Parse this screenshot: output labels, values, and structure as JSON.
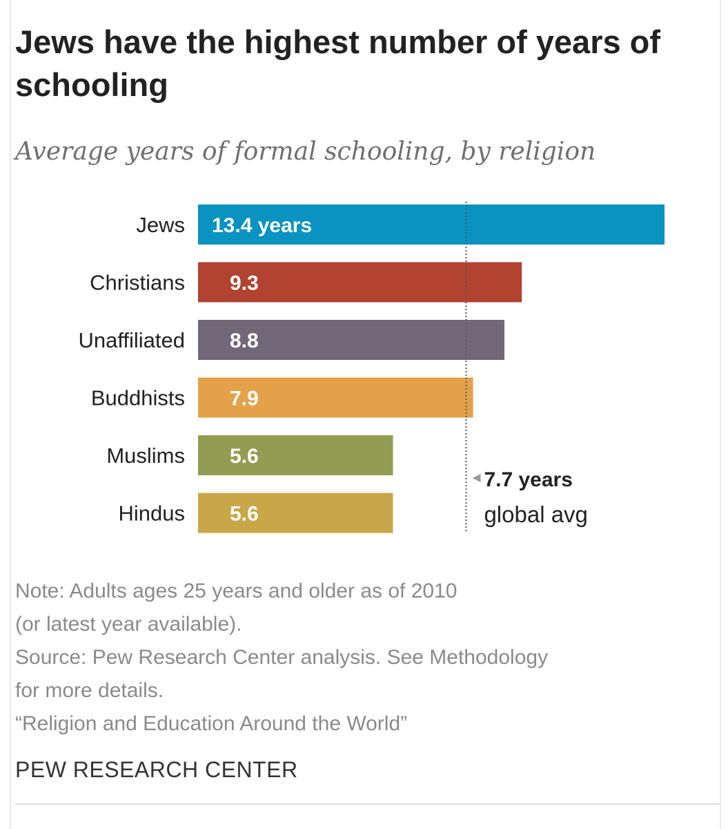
{
  "header": {
    "title": "Jews have the highest number of years of schooling",
    "subtitle": "Average years of formal schooling, by religion"
  },
  "chart_data": {
    "type": "bar",
    "orientation": "horizontal",
    "categories": [
      "Jews",
      "Christians",
      "Unaffiliated",
      "Buddhists",
      "Muslims",
      "Hindus"
    ],
    "values": [
      13.4,
      9.3,
      8.8,
      7.9,
      5.6,
      5.6
    ],
    "value_labels": [
      "13.4 years",
      "9.3",
      "8.8",
      "7.9",
      "5.6",
      "5.6"
    ],
    "bar_colors": [
      "#0a93c1",
      "#b14330",
      "#716779",
      "#e3a24a",
      "#929d53",
      "#c9a749"
    ],
    "xlim": [
      0,
      15
    ],
    "grid": false,
    "reference_line": {
      "value": 7.7,
      "label_line1": "7.7 years",
      "label_line2": "global avg"
    }
  },
  "footer": {
    "note_lines": [
      "Note: Adults ages 25 years and older as of 2010",
      "(or latest year available).",
      "Source: Pew Research Center analysis. See Methodology",
      "for more details.",
      "“Religion and Education Around the World”"
    ],
    "brand": "PEW RESEARCH CENTER"
  }
}
